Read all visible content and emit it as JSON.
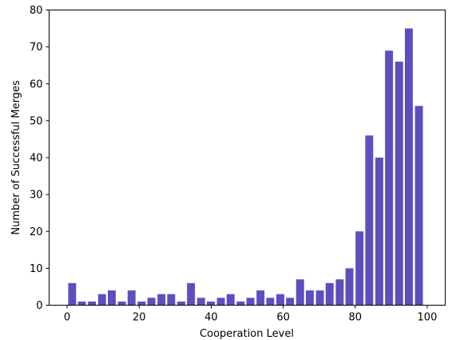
{
  "chart_data": {
    "type": "bar",
    "xlabel": "Cooperation Level",
    "ylabel": "Number of Successful Merges",
    "xlim": [
      -5,
      105
    ],
    "ylim": [
      0,
      80
    ],
    "xticks": [
      0,
      20,
      40,
      60,
      80,
      100
    ],
    "yticks": [
      0,
      10,
      20,
      30,
      40,
      50,
      60,
      70,
      80
    ],
    "grid": false,
    "bar_color": "#5b4fbf",
    "bar_width": 2.2,
    "x": [
      1.4,
      4.1,
      6.9,
      9.7,
      12.4,
      15.2,
      17.9,
      20.7,
      23.4,
      26.2,
      28.9,
      31.7,
      34.4,
      37.2,
      39.9,
      42.7,
      45.4,
      48.2,
      50.9,
      53.7,
      56.4,
      59.2,
      61.9,
      64.7,
      67.4,
      70.2,
      72.9,
      75.7,
      78.4,
      81.2,
      83.9,
      86.7,
      89.4,
      92.2,
      94.9,
      97.7
    ],
    "values": [
      6,
      1,
      1,
      3,
      4,
      1,
      4,
      1,
      2,
      3,
      3,
      1,
      6,
      2,
      1,
      2,
      3,
      1,
      2,
      4,
      2,
      3,
      2,
      7,
      4,
      4,
      6,
      7,
      10,
      20,
      46,
      40,
      69,
      66,
      75,
      54
    ]
  }
}
